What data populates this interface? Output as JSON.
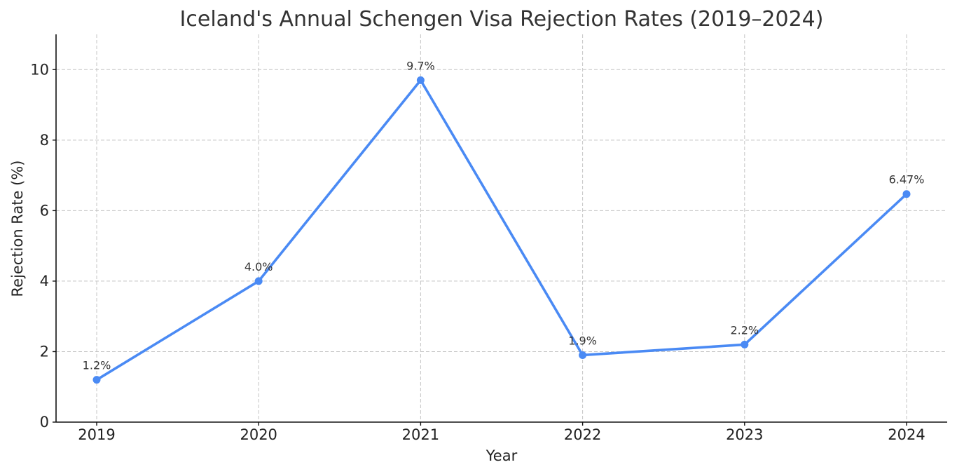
{
  "chart_data": {
    "type": "line",
    "title": "Iceland's Annual Schengen Visa Rejection Rates (2019–2024)",
    "xlabel": "Year",
    "ylabel": "Rejection Rate (%)",
    "categories": [
      "2019",
      "2020",
      "2021",
      "2022",
      "2023",
      "2024"
    ],
    "series": [
      {
        "values": [
          1.2,
          4.0,
          9.7,
          1.9,
          2.2,
          6.47
        ],
        "labels": [
          "1.2%",
          "4.0%",
          "9.7%",
          "1.9%",
          "2.2%",
          "6.47%"
        ],
        "color": "#4a8af4"
      }
    ],
    "ylim": [
      0,
      11
    ],
    "yticks": [
      0,
      2,
      4,
      6,
      8,
      10
    ],
    "grid": true,
    "legend": "none"
  }
}
